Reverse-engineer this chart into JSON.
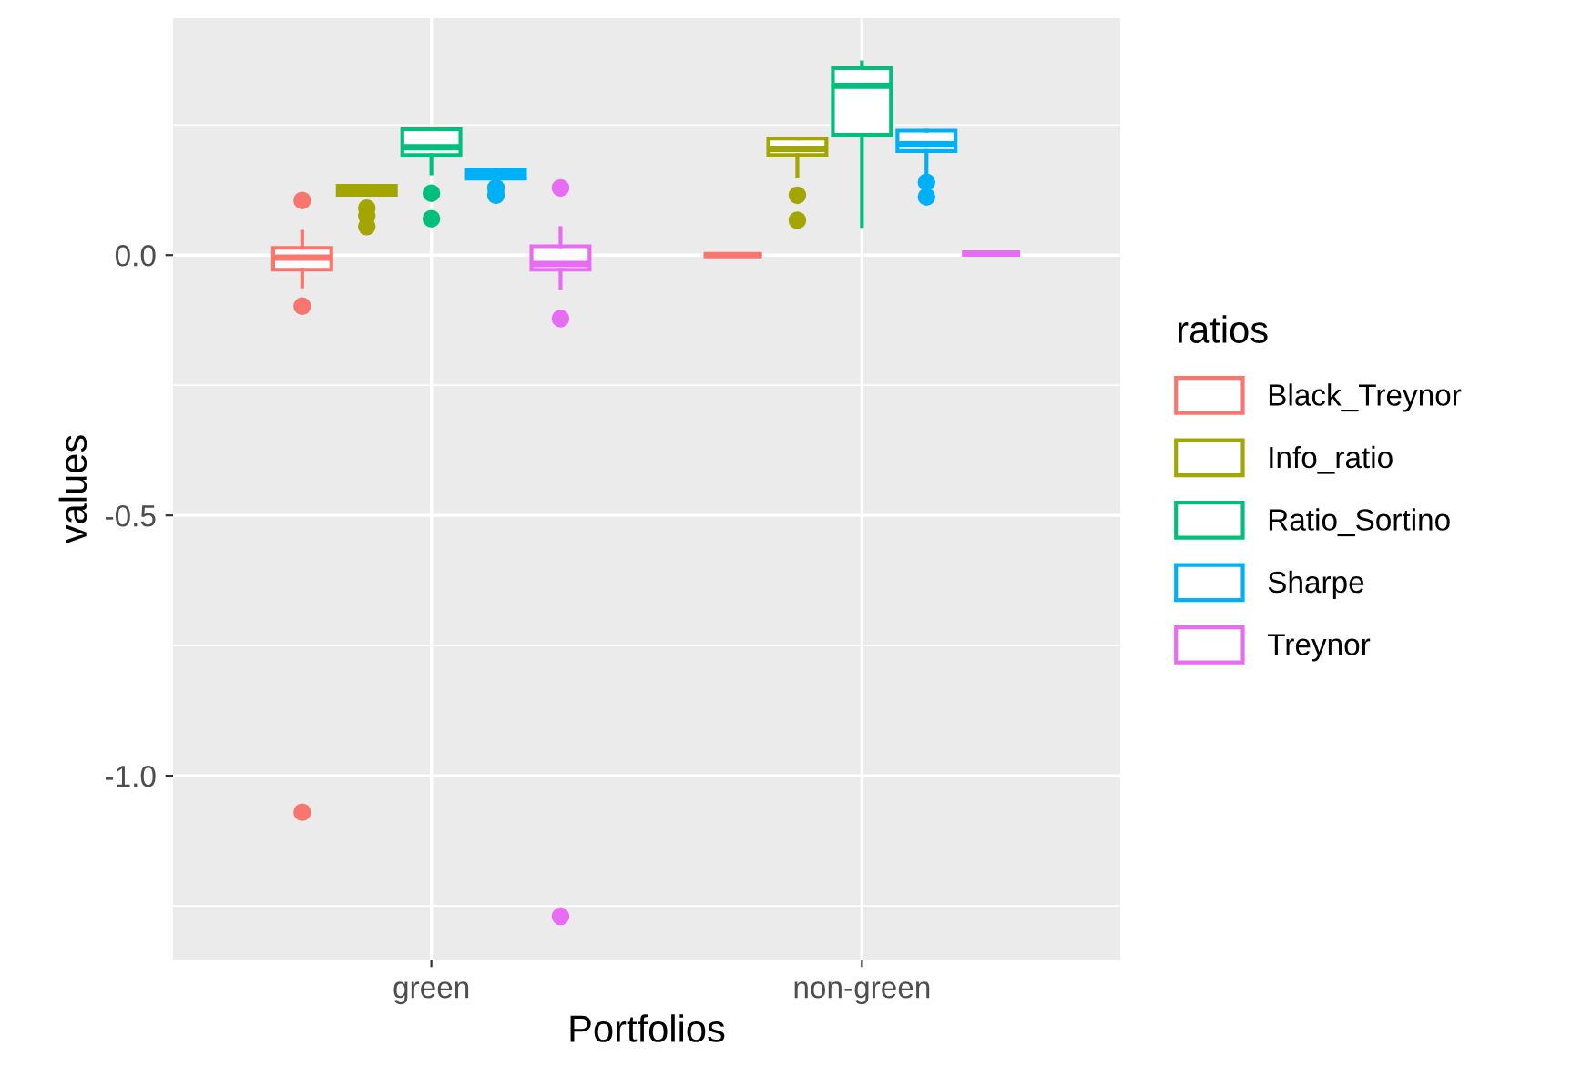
{
  "chart_data": {
    "type": "box",
    "xlabel": "Portfolios",
    "ylabel": "values",
    "legend_title": "ratios",
    "legend": "right",
    "grid": true,
    "categories": [
      "green",
      "non-green"
    ],
    "ylim": [
      -1.353,
      0.455
    ],
    "yticks": [
      {
        "value": -1.0,
        "label": "-1.0"
      },
      {
        "value": -0.5,
        "label": "-0.5"
      },
      {
        "value": 0.0,
        "label": "0.0"
      }
    ],
    "series": [
      {
        "name": "Black_Treynor",
        "color": "#F8766D",
        "boxes": [
          {
            "low": -0.06,
            "q1": -0.028,
            "median": -0.005,
            "q3": 0.014,
            "high": 0.045,
            "outliers": [
              0.105,
              -0.098,
              -1.07
            ]
          },
          {
            "low": 0.0,
            "q1": 0.0,
            "median": 0.0,
            "q3": 0.0,
            "high": 0.0
          }
        ]
      },
      {
        "name": "Info_ratio",
        "color": "#A3A500",
        "boxes": [
          {
            "low": 0.116,
            "q1": 0.116,
            "median": 0.125,
            "q3": 0.133,
            "high": 0.133,
            "outliers": [
              0.09,
              0.075,
              0.055
            ]
          },
          {
            "low": 0.151,
            "q1": 0.192,
            "median": 0.204,
            "q3": 0.224,
            "high": 0.224,
            "outliers": [
              0.115,
              0.067
            ]
          }
        ]
      },
      {
        "name": "Ratio_Sortino",
        "color": "#00BF7D",
        "boxes": [
          {
            "low": 0.157,
            "q1": 0.192,
            "median": 0.207,
            "q3": 0.242,
            "high": 0.242,
            "outliers": [
              0.119,
              0.07
            ]
          },
          {
            "low": 0.056,
            "q1": 0.231,
            "median": 0.325,
            "q3": 0.359,
            "high": 0.37
          }
        ]
      },
      {
        "name": "Sharpe",
        "color": "#00B0F6",
        "boxes": [
          {
            "low": 0.147,
            "q1": 0.147,
            "median": 0.155,
            "q3": 0.164,
            "high": 0.164,
            "outliers": [
              0.129,
              0.115
            ]
          },
          {
            "low": 0.157,
            "q1": 0.2,
            "median": 0.213,
            "q3": 0.239,
            "high": 0.239,
            "outliers": [
              0.14,
              0.112
            ]
          }
        ]
      },
      {
        "name": "Treynor",
        "color": "#E76BF3",
        "boxes": [
          {
            "low": -0.063,
            "q1": -0.028,
            "median": -0.017,
            "q3": 0.017,
            "high": 0.052,
            "outliers": [
              0.129,
              -0.122,
              -1.27
            ]
          },
          {
            "low": 0.003,
            "q1": 0.003,
            "median": 0.003,
            "q3": 0.003,
            "high": 0.003
          }
        ]
      }
    ]
  }
}
